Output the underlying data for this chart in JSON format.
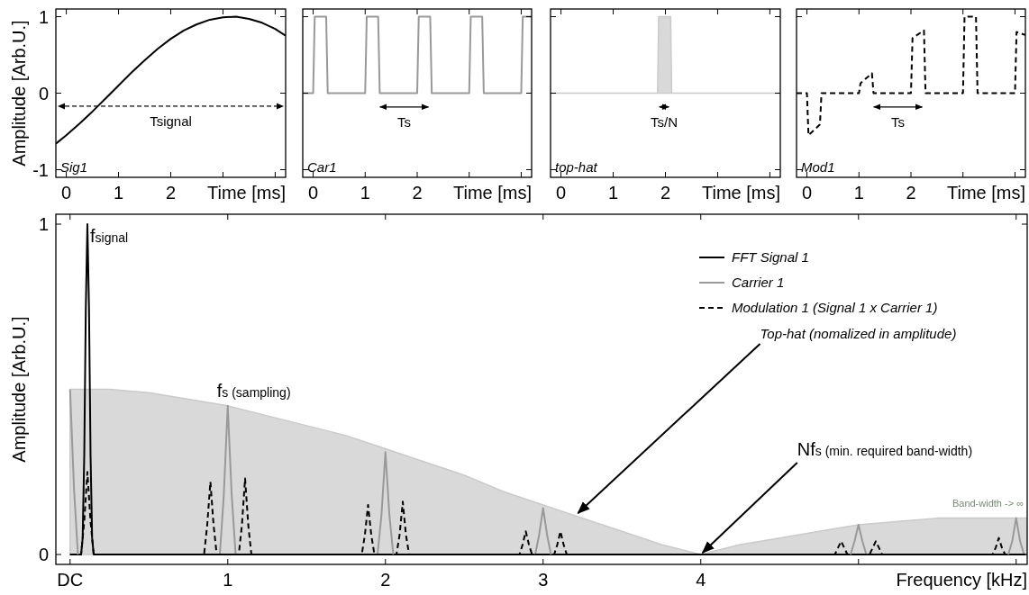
{
  "chart_data": [
    {
      "type": "line",
      "ylabel": "Amplitude [Arb.U.]",
      "xlabel": "Time [ms]",
      "xlim": [
        -0.2,
        4.2
      ],
      "ylim": [
        -1.1,
        1.1
      ],
      "xticks": [
        0,
        1,
        2,
        {
          "value": 3,
          "label": null
        },
        {
          "value": 4,
          "label": null
        }
      ],
      "yticks": [
        -1,
        0,
        1
      ],
      "annotations": [
        "Sig1",
        "Tsignal"
      ],
      "series": [
        {
          "color": "#000000",
          "x": [
            -0.2,
            0,
            0.25,
            0.5,
            0.75,
            1,
            1.25,
            1.5,
            1.75,
            2,
            2.25,
            2.5,
            2.75,
            3,
            3.25,
            3.5,
            3.75,
            4,
            4.2
          ],
          "values": [
            -0.66,
            -0.55,
            -0.4,
            -0.24,
            -0.07,
            0.1,
            0.27,
            0.43,
            0.58,
            0.71,
            0.82,
            0.9,
            0.96,
            0.99,
            1,
            0.97,
            0.92,
            0.84,
            0.75
          ]
        }
      ]
    },
    {
      "type": "line",
      "xlabel": "Time [ms]",
      "xlim": [
        -0.2,
        4.2
      ],
      "ylim": [
        -1.1,
        1.1
      ],
      "tick_labels": "x",
      "xticks": [
        0,
        1,
        2,
        {
          "value": 3,
          "label": null
        },
        {
          "value": 4,
          "label": null
        }
      ],
      "yticks": [
        -1,
        0,
        1
      ],
      "annotations": [
        "Car1",
        "Ts"
      ],
      "series": [
        {
          "color": "#999999",
          "x": [
            -0.2,
            0,
            0.03,
            0.25,
            0.28,
            1,
            1.03,
            1.25,
            1.28,
            2,
            2.03,
            2.25,
            2.28,
            3,
            3.03,
            3.25,
            3.28,
            4,
            4.03,
            4.2
          ],
          "values": [
            0,
            0,
            1,
            1,
            0,
            0,
            1,
            1,
            0,
            0,
            1,
            1,
            0,
            0,
            1,
            1,
            0,
            0,
            1,
            1
          ]
        }
      ]
    },
    {
      "type": "area",
      "xlabel": "Time [ms]",
      "xlim": [
        -0.2,
        4.2
      ],
      "ylim": [
        -1.1,
        1.1
      ],
      "tick_labels": "x",
      "xticks": [
        0,
        1,
        2,
        {
          "value": 3,
          "label": null
        },
        {
          "value": 4,
          "label": null
        }
      ],
      "yticks": [
        -1,
        0,
        1
      ],
      "annotations": [
        "top-hat",
        "Ts/N"
      ],
      "series": [
        {
          "color": "#d9d9d9",
          "x": [
            -0.2,
            1.85,
            1.87,
            2.1,
            2.12,
            4.2
          ],
          "values": [
            0,
            0,
            1,
            1,
            0,
            0
          ]
        }
      ]
    },
    {
      "type": "line",
      "xlabel": "Time [ms]",
      "xlim": [
        -0.2,
        4.2
      ],
      "ylim": [
        -1.1,
        1.1
      ],
      "tick_labels": "x",
      "xticks": [
        0,
        1,
        2,
        {
          "value": 3,
          "label": null
        },
        {
          "value": 4,
          "label": null
        }
      ],
      "yticks": [
        -1,
        0,
        1
      ],
      "annotations": [
        "Mod1",
        "Ts"
      ],
      "series": [
        {
          "color": "#000000",
          "line_style": "dashed",
          "x": [
            -0.2,
            0,
            0.03,
            0.25,
            0.28,
            1,
            1.03,
            1.25,
            1.28,
            2,
            2.03,
            2.25,
            2.28,
            3,
            3.03,
            3.25,
            3.28,
            4,
            4.03,
            4.2
          ],
          "values": [
            0,
            0,
            -0.55,
            -0.41,
            0,
            0,
            0.13,
            0.26,
            0,
            0,
            0.72,
            0.82,
            0,
            0,
            1,
            1,
            0,
            0,
            0.8,
            0.76
          ]
        }
      ]
    },
    {
      "type": "line",
      "ylabel": "Amplitude [Arb.U.]",
      "xlabel": "Frequency [kHz]",
      "xlim": [
        -0.09,
        6.07
      ],
      "ylim": [
        -0.03,
        1.03
      ],
      "xticks": [
        {
          "value": 0,
          "label": "DC"
        },
        1,
        2,
        3,
        4,
        {
          "value": 5,
          "label": null
        },
        {
          "value": 6,
          "label": null
        }
      ],
      "yticks": [
        0,
        1
      ],
      "legend": "top right",
      "annotations": [
        {
          "text": "f$_{signal}$",
          "x": 0.11,
          "y": 1
        },
        {
          "text": "f$_{s}$ (sampling)",
          "x": 1,
          "y": 0.45
        },
        {
          "text": "Top-hat (nomalized in amplitude)",
          "x": 3.21,
          "y": 0.12
        },
        {
          "text": "Nf$_{s}$ (min. required band-width)",
          "x": 4,
          "y": 0
        },
        "Band-width -> ∞"
      ],
      "series": [
        {
          "type": "area",
          "color": "#d9d9d9",
          "x": [
            0,
            0.25,
            0.5,
            0.75,
            1,
            1.25,
            1.5,
            1.75,
            2,
            2.25,
            2.5,
            2.75,
            3,
            3.25,
            3.5,
            3.75,
            4,
            4.25,
            4.5,
            4.75,
            5,
            5.25,
            5.5,
            5.75,
            6,
            6.07
          ],
          "values": [
            0.5,
            0.5,
            0.49,
            0.47,
            0.45,
            0.42,
            0.39,
            0.36,
            0.32,
            0.28,
            0.24,
            0.19,
            0.15,
            0.11,
            0.07,
            0.03,
            0,
            0.03,
            0.05,
            0.07,
            0.09,
            0.1,
            0.11,
            0.11,
            0.11,
            0.11
          ]
        },
        {
          "name": "FFT Signal 1",
          "color": "#000000",
          "x": [
            0,
            0.07,
            0.08,
            0.09,
            0.1,
            0.11,
            0.12,
            0.13,
            0.14,
            0.15,
            6.07
          ],
          "values": [
            0,
            0,
            0.05,
            0.3,
            0.75,
            1,
            0.75,
            0.3,
            0.05,
            0,
            0
          ]
        },
        {
          "name": "Carrier 1",
          "color": "#999999",
          "x": [
            0,
            0.025,
            0.05,
            null,
            0.95,
            0.975,
            1,
            1.025,
            1.05,
            null,
            1.95,
            1.975,
            2,
            2.025,
            2.05,
            null,
            2.95,
            2.975,
            3,
            3.025,
            3.05,
            null,
            4.95,
            4.975,
            5,
            5.025,
            5.05,
            null,
            5.95,
            5.975,
            6,
            6.025,
            6.05,
            6.07
          ],
          "values": [
            0.5,
            0.2,
            0,
            null,
            0,
            0.18,
            0.45,
            0.18,
            0,
            null,
            0,
            0.12,
            0.31,
            0.12,
            0,
            null,
            0,
            0.06,
            0.14,
            0.06,
            0,
            null,
            0,
            0.04,
            0.09,
            0.04,
            0,
            null,
            0,
            0.04,
            0.11,
            0.04,
            0,
            0
          ]
        },
        {
          "name": "Modulation 1 (Signal 1 x Carrier 1)",
          "color": "#000000",
          "line_style": "dashed",
          "x": [
            0,
            0.07,
            0.09,
            0.11,
            0.13,
            0.15,
            0.85,
            0.87,
            0.89,
            0.91,
            0.93,
            1.07,
            1.09,
            1.11,
            1.13,
            1.15,
            1.85,
            1.87,
            1.89,
            1.91,
            1.93,
            2.07,
            2.09,
            2.11,
            2.13,
            2.15,
            2.85,
            2.87,
            2.89,
            2.91,
            2.93,
            3.07,
            3.09,
            3.11,
            3.13,
            3.15,
            4.85,
            4.87,
            4.89,
            4.91,
            4.93,
            5.07,
            5.09,
            5.11,
            5.13,
            5.15,
            5.85,
            5.87,
            5.89,
            5.91,
            5.93,
            6.07
          ],
          "values": [
            0,
            0,
            0.1,
            0.25,
            0.1,
            0,
            0,
            0.09,
            0.22,
            0.09,
            0,
            0,
            0.09,
            0.23,
            0.09,
            0,
            0,
            0.06,
            0.15,
            0.06,
            0,
            0,
            0.06,
            0.16,
            0.06,
            0,
            0,
            0.03,
            0.07,
            0.03,
            0,
            0,
            0.03,
            0.07,
            0.03,
            0,
            0,
            0.02,
            0.04,
            0.02,
            0,
            0,
            0.02,
            0.04,
            0.02,
            0,
            0,
            0.02,
            0.05,
            0.02,
            0,
            0
          ]
        }
      ]
    }
  ]
}
